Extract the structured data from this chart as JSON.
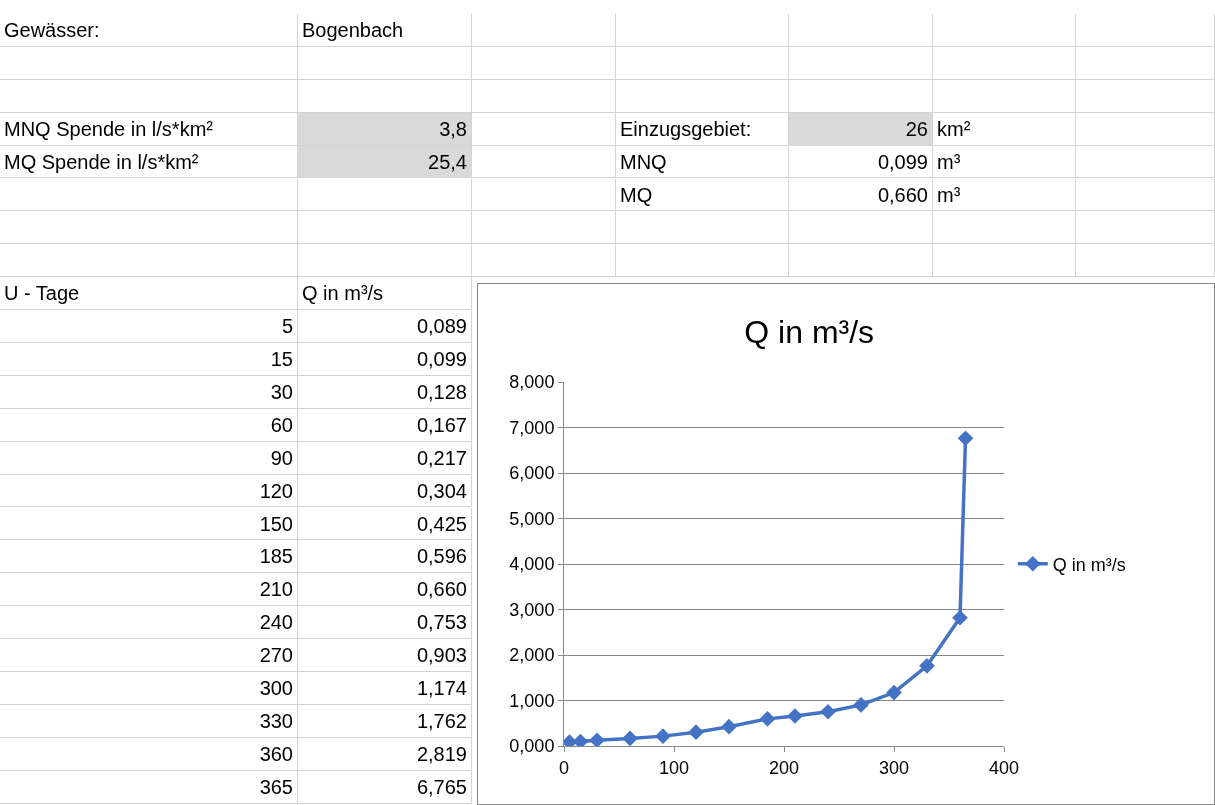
{
  "chart_data": {
    "type": "line",
    "title": "Q in m³/s",
    "x": [
      5,
      15,
      30,
      60,
      90,
      120,
      150,
      185,
      210,
      240,
      270,
      300,
      330,
      360,
      365
    ],
    "series": [
      {
        "name": "Q in m³/s",
        "color": "#4472c4",
        "values": [
          0.089,
          0.099,
          0.128,
          0.167,
          0.217,
          0.304,
          0.425,
          0.596,
          0.66,
          0.753,
          0.903,
          1.174,
          1.762,
          2.819,
          6.765
        ]
      }
    ],
    "xlim": [
      0,
      400
    ],
    "xticks": [
      0,
      100,
      200,
      300,
      400
    ],
    "ylim": [
      0,
      8
    ],
    "yticks": [
      {
        "value": 0,
        "label": "0,000"
      },
      {
        "value": 1,
        "label": "1,000"
      },
      {
        "value": 2,
        "label": "2,000"
      },
      {
        "value": 3,
        "label": "3,000"
      },
      {
        "value": 4,
        "label": "4,000"
      },
      {
        "value": 5,
        "label": "5,000"
      },
      {
        "value": 6,
        "label": "6,000"
      },
      {
        "value": 7,
        "label": "7,000"
      },
      {
        "value": 8,
        "label": "8,000"
      }
    ],
    "grid": "y",
    "legend": "right",
    "marker": "diamond",
    "line_style": "solid",
    "annotations": [
      "Gewässer:",
      "Bogenbach",
      "MNQ Spende in l/s*km²",
      "3,8",
      "MQ Spende in l/s*km²",
      "25,4",
      "Einzugsgebiet:",
      "26",
      "km²",
      "MNQ",
      "0,099",
      "m³",
      "MQ",
      "0,660",
      "m³",
      "U - Tage",
      "Q in m³/s",
      "5",
      "0,089",
      "15",
      "0,099",
      "30",
      "0,128",
      "60",
      "0,167",
      "90",
      "0,217",
      "120",
      "0,304",
      "150",
      "0,425",
      "185",
      "0,596",
      "210",
      "0,660",
      "240",
      "0,753",
      "270",
      "0,903",
      "300",
      "1,174",
      "330",
      "1,762",
      "360",
      "2,819",
      "365",
      "6,765"
    ]
  }
}
